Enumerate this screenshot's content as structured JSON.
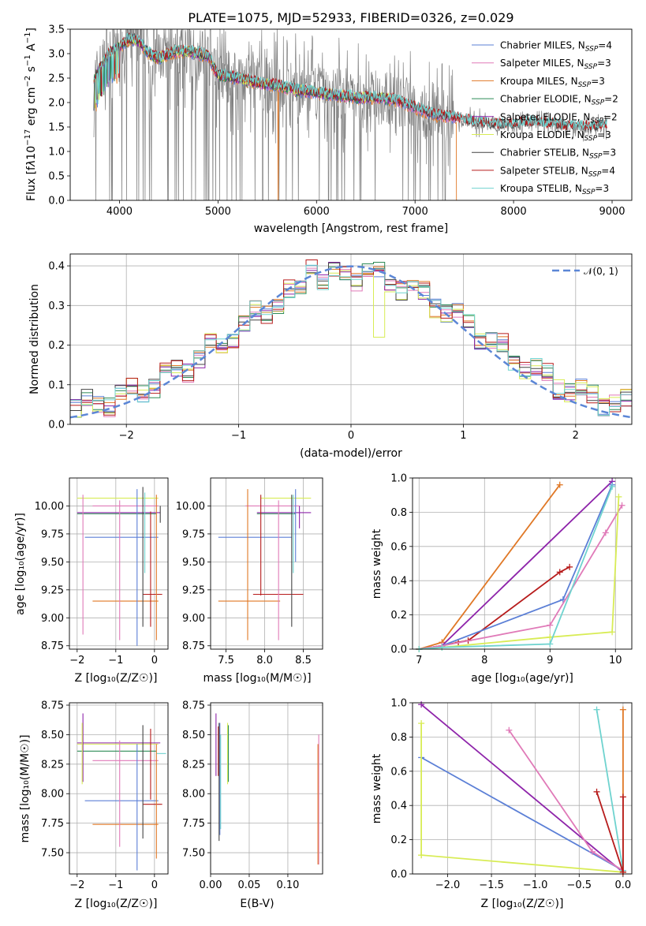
{
  "colors": {
    "chabrier_miles": "#5b7fd6",
    "salpeter_miles": "#e07ab8",
    "kroupa_miles": "#e07826",
    "chabrier_elodie": "#2e8b57",
    "salpeter_elodie": "#8e24aa",
    "kroupa_elodie": "#d8ec55",
    "chabrier_stelib": "#444444",
    "salpeter_stelib": "#b71c1c",
    "kroupa_stelib": "#6fd3cf",
    "data_gray": "#808080",
    "normal": "#5b86d6"
  },
  "chart_data": [
    {
      "id": "spectrum",
      "type": "line",
      "title": "PLATE=1075, MJD=52933, FIBERID=0326, z=0.029",
      "xlabel": "wavelength [Angstrom, rest frame]",
      "ylabel": "Flux [f_λ 10^-17 erg cm^-2 s^-1 A^-1]",
      "xlim": [
        3500,
        9200
      ],
      "ylim": [
        0,
        3.5
      ],
      "xticks": [
        "4000",
        "5000",
        "6000",
        "7000",
        "8000",
        "9000"
      ],
      "yticks": [
        "0.0",
        "0.5",
        "1.0",
        "1.5",
        "2.0",
        "2.5",
        "3.0",
        "3.5"
      ],
      "grid": false,
      "legend_position": "top-right",
      "legend": [
        {
          "label": "Chabrier MILES, N",
          "sub": "SSP",
          "eq": "=4",
          "color_key": "chabrier_miles"
        },
        {
          "label": "Salpeter MILES, N",
          "sub": "SSP",
          "eq": "=3",
          "color_key": "salpeter_miles"
        },
        {
          "label": "Kroupa MILES, N",
          "sub": "SSP",
          "eq": "=3",
          "color_key": "kroupa_miles"
        },
        {
          "label": "Chabrier ELODIE, N",
          "sub": "SSP",
          "eq": "=2",
          "color_key": "chabrier_elodie"
        },
        {
          "label": "Salpeter ELODIE, N",
          "sub": "SSP",
          "eq": "=2",
          "color_key": "salpeter_elodie"
        },
        {
          "label": "Kroupa ELODIE, N",
          "sub": "SSP",
          "eq": "=3",
          "color_key": "kroupa_elodie"
        },
        {
          "label": "Chabrier STELIB, N",
          "sub": "SSP",
          "eq": "=3",
          "color_key": "chabrier_stelib"
        },
        {
          "label": "Salpeter STELIB, N",
          "sub": "SSP",
          "eq": "=4",
          "color_key": "salpeter_stelib"
        },
        {
          "label": "Kroupa STELIB, N",
          "sub": "SSP",
          "eq": "=3",
          "color_key": "kroupa_stelib"
        }
      ],
      "continuum": {
        "x": [
          3750,
          3800,
          3900,
          4000,
          4100,
          4200,
          4300,
          4400,
          4500,
          4600,
          4700,
          4800,
          4900,
          5000,
          5200,
          5400,
          5600,
          5800,
          6000,
          6200,
          6400,
          6600,
          6800,
          7000,
          7200,
          7400,
          7600,
          7800,
          8000,
          8200,
          8400,
          8600,
          8800,
          8950
        ],
        "y": [
          2.5,
          2.7,
          3.0,
          3.15,
          3.3,
          3.25,
          3.0,
          2.9,
          3.0,
          3.05,
          3.05,
          3.0,
          2.95,
          2.55,
          2.5,
          2.4,
          2.35,
          2.25,
          2.2,
          2.15,
          2.1,
          2.1,
          2.05,
          1.9,
          1.75,
          1.7,
          1.6,
          1.55,
          1.55,
          1.6,
          1.55,
          1.5,
          1.5,
          1.55
        ]
      }
    },
    {
      "id": "residuals",
      "type": "line",
      "xlabel": "(data-model)/error",
      "ylabel": "Normed distribution",
      "xlim": [
        -2.5,
        2.5
      ],
      "ylim": [
        0,
        0.43
      ],
      "xticks": [
        "−2",
        "−1",
        "0",
        "1",
        "2"
      ],
      "yticks": [
        "0.0",
        "0.1",
        "0.2",
        "0.3",
        "0.4"
      ],
      "grid": true,
      "legend_position": "top-right",
      "legend_label": "𝒩(0, 1)",
      "hist_mean": {
        "x": [
          -2.5,
          -2.25,
          -2.0,
          -1.75,
          -1.5,
          -1.25,
          -1.0,
          -0.75,
          -0.5,
          -0.25,
          0.0,
          0.25,
          0.5,
          0.75,
          1.0,
          1.25,
          1.5,
          1.75,
          2.0,
          2.25,
          2.5
        ],
        "y": [
          0.025,
          0.045,
          0.07,
          0.1,
          0.15,
          0.22,
          0.27,
          0.3,
          0.33,
          0.36,
          0.33,
          0.34,
          0.35,
          0.3,
          0.26,
          0.22,
          0.16,
          0.13,
          0.09,
          0.06,
          0.04
        ]
      }
    },
    {
      "id": "age-vs-Z",
      "type": "scatter",
      "xlabel": "Z [log₁₀(Z/Z☉)]",
      "ylabel": "age  [log₁₀(age/yr)]",
      "xlim": [
        -2.2,
        0.35
      ],
      "ylim": [
        8.72,
        10.25
      ],
      "xticks": [
        "−2",
        "−1",
        "0"
      ],
      "yticks": [
        "8.75",
        "9.00",
        "9.25",
        "9.50",
        "9.75",
        "10.00"
      ],
      "grid": true
    },
    {
      "id": "age-vs-mass",
      "type": "scatter",
      "xlabel": "mass [log₁₀(M/M☉)]",
      "xlim": [
        7.3,
        8.75
      ],
      "ylim": [
        8.72,
        10.25
      ],
      "xticks": [
        "7.5",
        "8.0",
        "8.5"
      ],
      "yticks": [
        "8.75",
        "9.00",
        "9.25",
        "9.50",
        "9.75",
        "10.00"
      ],
      "grid": true
    },
    {
      "id": "weight-vs-age",
      "type": "line",
      "xlabel": "age  [log₁₀(age/yr)]",
      "ylabel": "mass weight",
      "xlim": [
        6.9,
        10.25
      ],
      "ylim": [
        0,
        1.0
      ],
      "xticks": [
        "7",
        "8",
        "9",
        "10"
      ],
      "yticks": [
        "0.0",
        "0.2",
        "0.4",
        "0.6",
        "0.8",
        "1.0"
      ],
      "grid": true,
      "series": [
        {
          "color_key": "kroupa_miles",
          "x": [
            7.0,
            7.35,
            9.15
          ],
          "y": [
            0.0,
            0.04,
            0.96
          ]
        },
        {
          "color_key": "salpeter_elodie",
          "x": [
            7.0,
            7.35,
            9.95
          ],
          "y": [
            0.0,
            0.02,
            0.98
          ]
        },
        {
          "color_key": "salpeter_stelib",
          "x": [
            7.0,
            7.35,
            7.6,
            7.75,
            9.15,
            9.3
          ],
          "y": [
            0.0,
            0.02,
            0.04,
            0.05,
            0.45,
            0.48
          ]
        },
        {
          "color_key": "chabrier_miles",
          "x": [
            7.0,
            7.35,
            9.2,
            9.95
          ],
          "y": [
            0.0,
            0.02,
            0.29,
            0.96
          ]
        },
        {
          "color_key": "salpeter_miles",
          "x": [
            7.0,
            7.35,
            9.0,
            9.85,
            10.1
          ],
          "y": [
            0.0,
            0.02,
            0.14,
            0.68,
            0.84
          ]
        },
        {
          "color_key": "kroupa_elodie",
          "x": [
            7.0,
            7.35,
            9.0,
            9.95,
            10.05
          ],
          "y": [
            0.0,
            0.01,
            0.07,
            0.1,
            0.89
          ]
        },
        {
          "color_key": "kroupa_stelib",
          "x": [
            7.0,
            7.35,
            9.0,
            9.95
          ],
          "y": [
            0.0,
            0.01,
            0.03,
            0.95
          ]
        }
      ]
    },
    {
      "id": "mass-vs-Z",
      "type": "scatter",
      "xlabel": "Z [log₁₀(Z/Z☉)]",
      "ylabel": "mass [log₁₀(M/M☉)]",
      "xlim": [
        -2.2,
        0.35
      ],
      "ylim": [
        7.32,
        8.77
      ],
      "xticks": [
        "−2",
        "−1",
        "0"
      ],
      "yticks": [
        "7.50",
        "7.75",
        "8.00",
        "8.25",
        "8.50",
        "8.75"
      ],
      "grid": true
    },
    {
      "id": "mass-vs-ebv",
      "type": "scatter",
      "xlabel": "E(B-V)",
      "xlim": [
        0.0,
        0.145
      ],
      "ylim": [
        7.32,
        8.77
      ],
      "xticks": [
        "0.00",
        "0.05",
        "0.10"
      ],
      "yticks": [
        "7.50",
        "7.75",
        "8.00",
        "8.25",
        "8.50",
        "8.75"
      ],
      "grid": true
    },
    {
      "id": "weight-vs-Z",
      "type": "line",
      "xlabel": "Z [log₁₀(Z/Z☉)]",
      "ylabel": "mass weight",
      "xlim": [
        -2.4,
        0.1
      ],
      "ylim": [
        0,
        1.0
      ],
      "xticks": [
        "−2.0",
        "−1.5",
        "−1.0",
        "−0.5",
        "0.0"
      ],
      "yticks": [
        "0.0",
        "0.2",
        "0.4",
        "0.6",
        "0.8",
        "1.0"
      ],
      "grid": true,
      "series": [
        {
          "color_key": "salpeter_elodie",
          "x": [
            -2.3,
            0.0
          ],
          "y": [
            0.99,
            0.01
          ]
        },
        {
          "color_key": "chabrier_miles",
          "x": [
            -2.3,
            0.0
          ],
          "y": [
            0.68,
            0.02
          ]
        },
        {
          "color_key": "kroupa_elodie",
          "x": [
            -2.3,
            -2.3,
            -2.3,
            0.0
          ],
          "y": [
            0.88,
            0.11,
            0.11,
            0.01
          ]
        },
        {
          "color_key": "salpeter_miles",
          "x": [
            -1.3,
            -0.35,
            0.0
          ],
          "y": [
            0.84,
            0.13,
            0.02
          ]
        },
        {
          "color_key": "kroupa_stelib",
          "x": [
            -0.3,
            0.0
          ],
          "y": [
            0.96,
            0.02
          ]
        },
        {
          "color_key": "kroupa_miles",
          "x": [
            0.0,
            0.0
          ],
          "y": [
            0.96,
            0.01
          ]
        },
        {
          "color_key": "salpeter_stelib",
          "x": [
            -0.3,
            0.0,
            0.0
          ],
          "y": [
            0.48,
            0.01,
            0.45
          ]
        }
      ]
    }
  ]
}
